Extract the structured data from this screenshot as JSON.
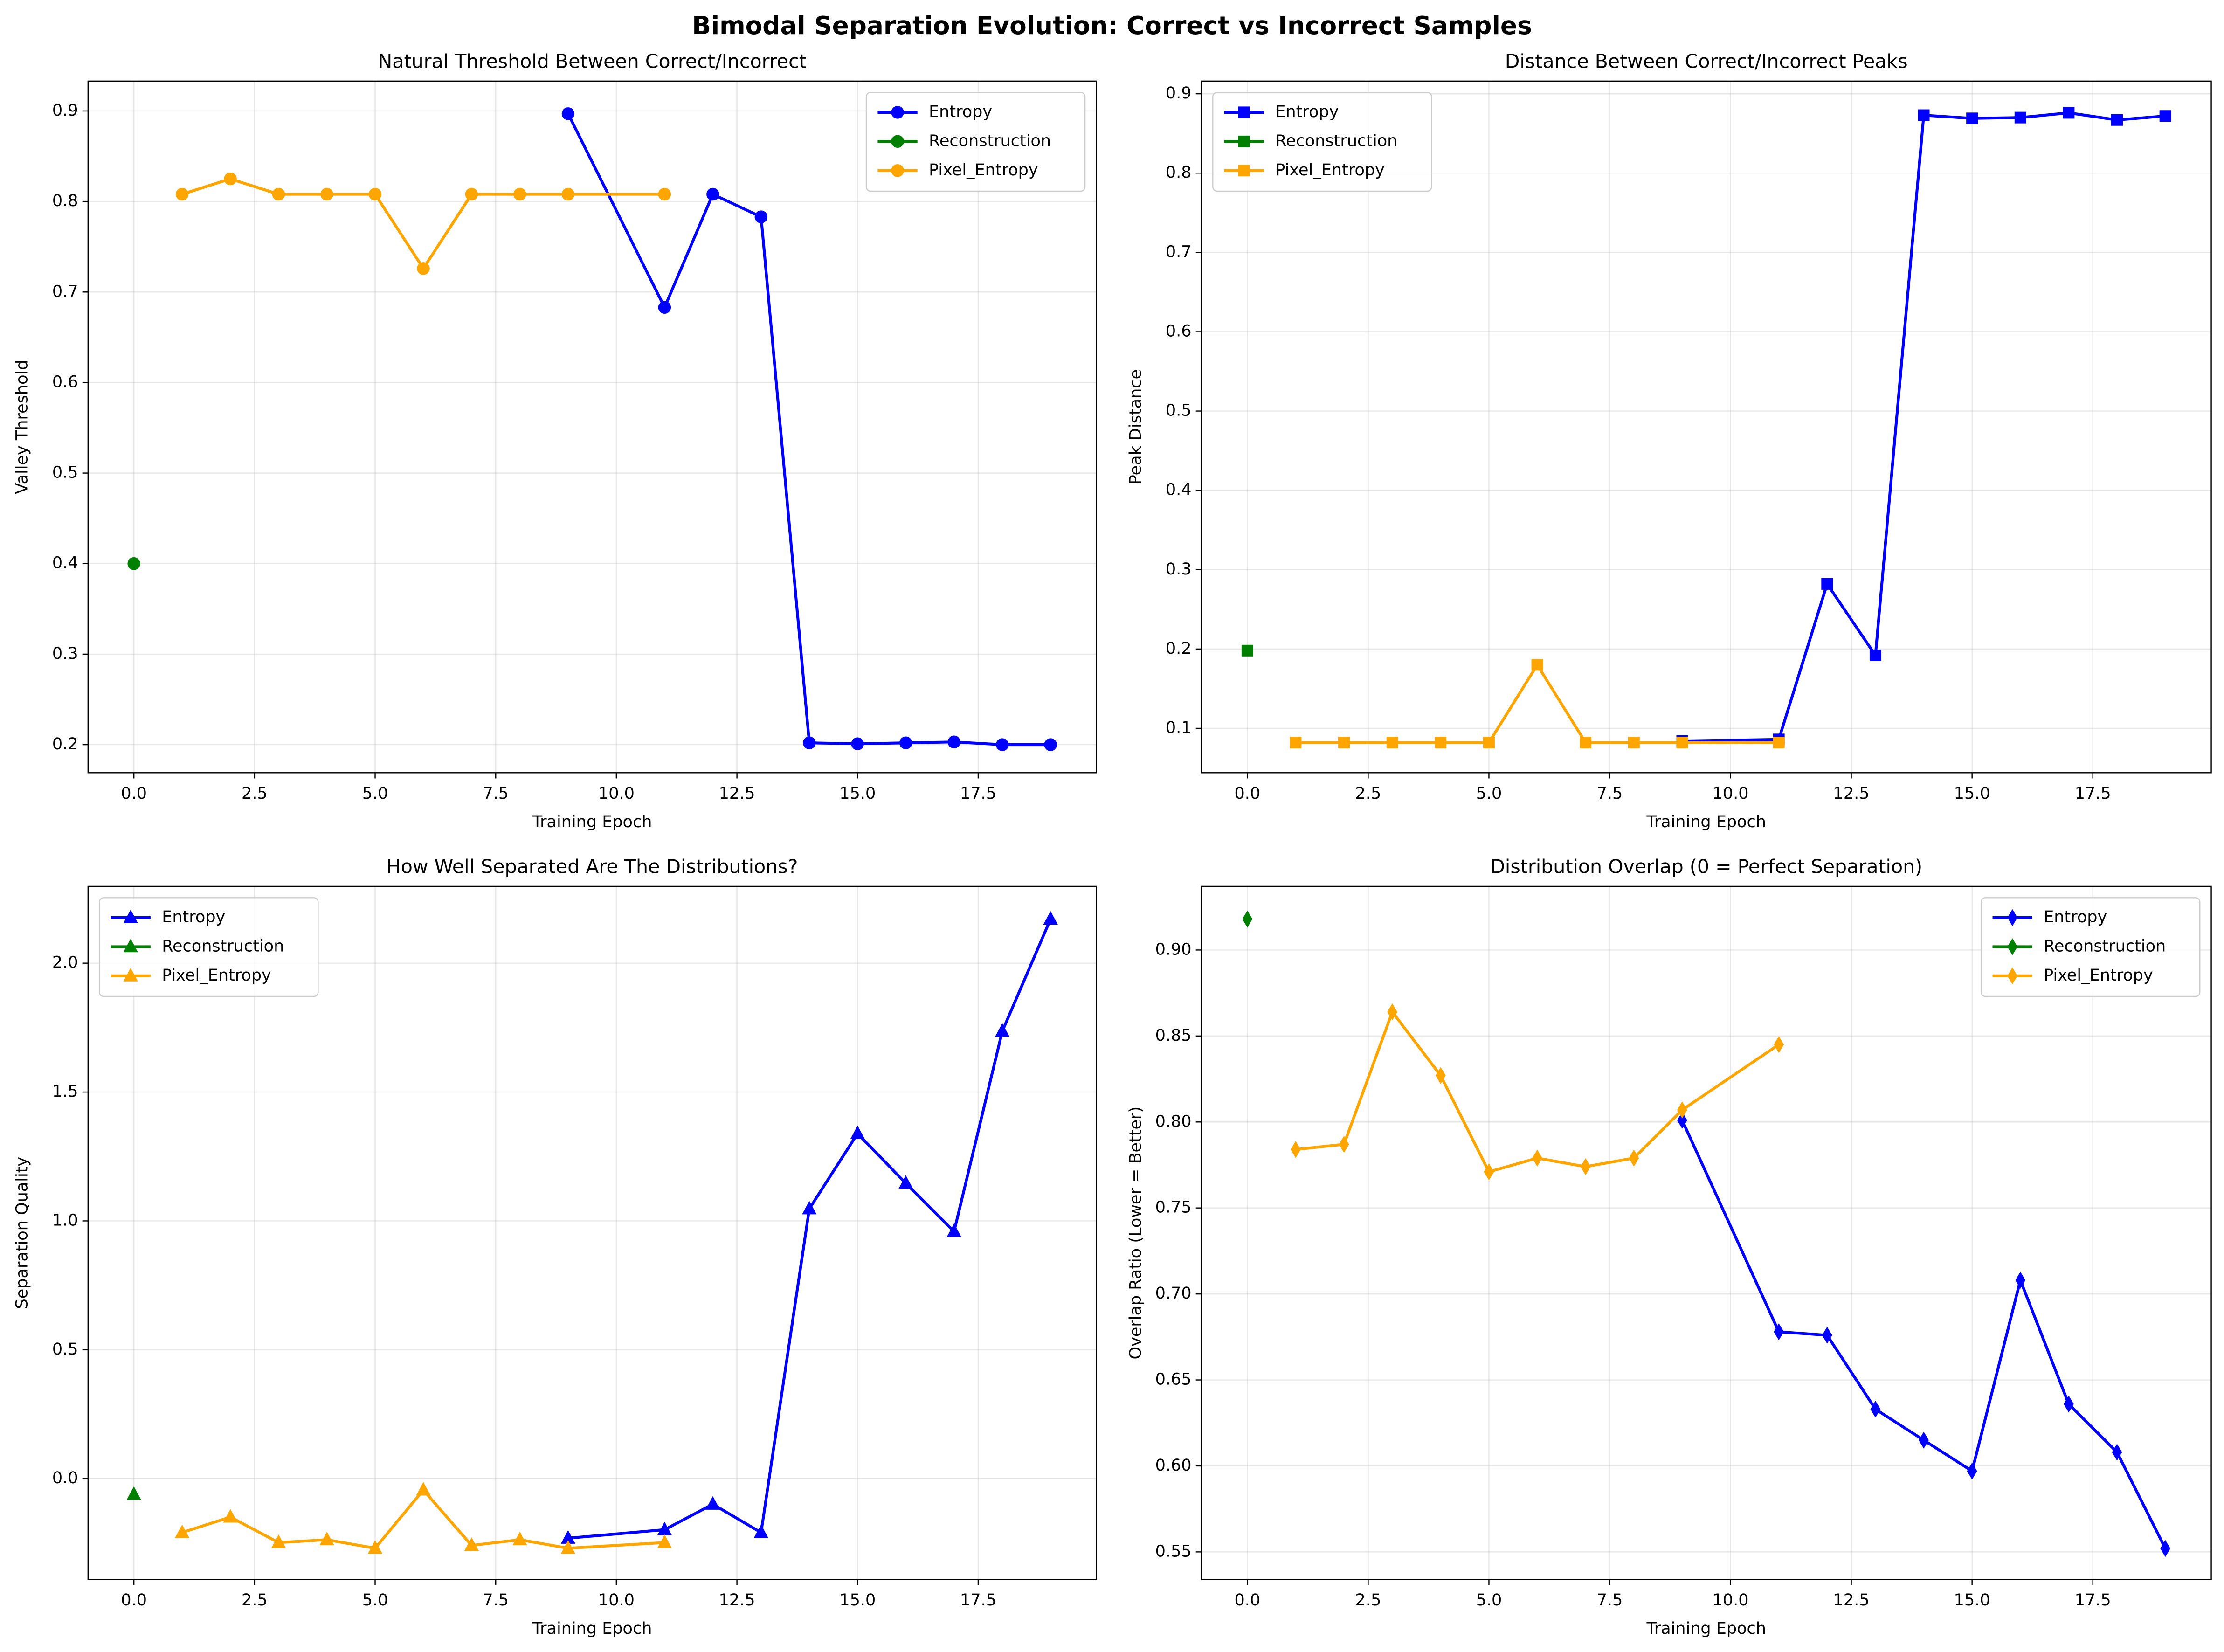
{
  "title": "Bimodal Separation Evolution: Correct vs Incorrect Samples",
  "chart_data": [
    {
      "type": "line",
      "title": "Natural Threshold Between Correct/Incorrect",
      "xlabel": "Training Epoch",
      "ylabel": "Valley Threshold",
      "marker": "circle",
      "grid": true,
      "legend": "upper right",
      "xlim": [
        -0.95,
        19.95
      ],
      "xticks": [
        {
          "value": 0,
          "label": "0.0"
        },
        2.5,
        {
          "value": 5,
          "label": "5.0"
        },
        7.5,
        {
          "value": 10,
          "label": "10.0"
        },
        12.5,
        {
          "value": 15,
          "label": "15.0"
        },
        17.5
      ],
      "ylim": [
        0.169,
        0.933
      ],
      "yticks": [
        0.2,
        0.3,
        0.4,
        0.5,
        0.6,
        0.7,
        0.8,
        0.9
      ],
      "series": [
        {
          "name": "Entropy",
          "color": "#0000ff",
          "x": [
            9,
            11,
            12,
            13,
            14,
            15,
            16,
            17,
            18,
            19
          ],
          "values": [
            0.897,
            0.683,
            0.808,
            0.783,
            0.202,
            0.201,
            0.202,
            0.203,
            0.2,
            0.2
          ]
        },
        {
          "name": "Reconstruction",
          "color": "#008000",
          "x": [
            0
          ],
          "values": [
            0.4
          ]
        },
        {
          "name": "Pixel_Entropy",
          "color": "#ffa500",
          "x": [
            1,
            2,
            3,
            4,
            5,
            6,
            7,
            8,
            9,
            11
          ],
          "values": [
            0.808,
            0.825,
            0.808,
            0.808,
            0.808,
            0.726,
            0.808,
            0.808,
            0.808,
            0.808
          ]
        }
      ]
    },
    {
      "type": "line",
      "title": "Distance Between Correct/Incorrect Peaks",
      "xlabel": "Training Epoch",
      "ylabel": "Peak Distance",
      "marker": "square",
      "grid": true,
      "legend": "upper left",
      "xlim": [
        -0.95,
        19.95
      ],
      "xticks": [
        {
          "value": 0,
          "label": "0.0"
        },
        2.5,
        {
          "value": 5,
          "label": "5.0"
        },
        7.5,
        {
          "value": 10,
          "label": "10.0"
        },
        12.5,
        {
          "value": 15,
          "label": "15.0"
        },
        17.5
      ],
      "ylim": [
        0.044,
        0.916
      ],
      "yticks": [
        0.1,
        0.2,
        0.3,
        0.4,
        0.5,
        0.6,
        0.7,
        0.8,
        0.9
      ],
      "series": [
        {
          "name": "Entropy",
          "color": "#0000ff",
          "x": [
            9,
            11,
            12,
            13,
            14,
            15,
            16,
            17,
            18,
            19
          ],
          "values": [
            0.084,
            0.086,
            0.282,
            0.192,
            0.873,
            0.869,
            0.87,
            0.876,
            0.867,
            0.872
          ]
        },
        {
          "name": "Reconstruction",
          "color": "#008000",
          "x": [
            0
          ],
          "values": [
            0.198
          ]
        },
        {
          "name": "Pixel_Entropy",
          "color": "#ffa500",
          "x": [
            1,
            2,
            3,
            4,
            5,
            6,
            7,
            8,
            9,
            11
          ],
          "values": [
            0.082,
            0.082,
            0.082,
            0.082,
            0.082,
            0.18,
            0.082,
            0.082,
            0.082,
            0.082
          ]
        }
      ]
    },
    {
      "type": "line",
      "title": "How Well Separated Are The Distributions?",
      "xlabel": "Training Epoch",
      "ylabel": "Separation Quality",
      "marker": "triangle",
      "grid": true,
      "legend": "upper left",
      "xlim": [
        -0.95,
        19.95
      ],
      "xticks": [
        {
          "value": 0,
          "label": "0.0"
        },
        2.5,
        {
          "value": 5,
          "label": "5.0"
        },
        7.5,
        {
          "value": 10,
          "label": "10.0"
        },
        12.5,
        {
          "value": 15,
          "label": "15.0"
        },
        17.5
      ],
      "ylim": [
        -0.391,
        2.298
      ],
      "yticks": [
        {
          "value": 0,
          "label": "0.0"
        },
        0.5,
        {
          "value": 1,
          "label": "1.0"
        },
        1.5,
        {
          "value": 2,
          "label": "2.0"
        }
      ],
      "series": [
        {
          "name": "Entropy",
          "color": "#0000ff",
          "x": [
            9,
            11,
            12,
            13,
            14,
            15,
            16,
            17,
            18,
            19
          ],
          "values": [
            -0.231,
            -0.198,
            -0.099,
            -0.209,
            1.047,
            1.339,
            1.146,
            0.959,
            1.736,
            2.171
          ]
        },
        {
          "name": "Reconstruction",
          "color": "#008000",
          "x": [
            0
          ],
          "values": [
            -0.061
          ]
        },
        {
          "name": "Pixel_Entropy",
          "color": "#ffa500",
          "x": [
            1,
            2,
            3,
            4,
            5,
            6,
            7,
            8,
            9,
            11
          ],
          "values": [
            -0.209,
            -0.149,
            -0.248,
            -0.237,
            -0.27,
            -0.044,
            -0.259,
            -0.237,
            -0.27,
            -0.248
          ]
        }
      ]
    },
    {
      "type": "line",
      "title": "Distribution Overlap (0 = Perfect Separation)",
      "xlabel": "Training Epoch",
      "ylabel": "Overlap Ratio (Lower = Better)",
      "marker": "diamond",
      "grid": true,
      "legend": "upper right",
      "xlim": [
        -0.95,
        19.95
      ],
      "xticks": [
        {
          "value": 0,
          "label": "0.0"
        },
        2.5,
        {
          "value": 5,
          "label": "5.0"
        },
        7.5,
        {
          "value": 10,
          "label": "10.0"
        },
        12.5,
        {
          "value": 15,
          "label": "15.0"
        },
        17.5
      ],
      "ylim": [
        0.534,
        0.937
      ],
      "yticks": [
        0.55,
        {
          "value": 0.6,
          "label": "0.60"
        },
        0.65,
        {
          "value": 0.7,
          "label": "0.70"
        },
        0.75,
        {
          "value": 0.8,
          "label": "0.80"
        },
        0.85,
        {
          "value": 0.9,
          "label": "0.90"
        }
      ],
      "series": [
        {
          "name": "Entropy",
          "color": "#0000ff",
          "x": [
            9,
            11,
            12,
            13,
            14,
            15,
            16,
            17,
            18,
            19
          ],
          "values": [
            0.801,
            0.678,
            0.676,
            0.633,
            0.615,
            0.597,
            0.708,
            0.636,
            0.608,
            0.552
          ]
        },
        {
          "name": "Reconstruction",
          "color": "#008000",
          "x": [
            0
          ],
          "values": [
            0.918
          ]
        },
        {
          "name": "Pixel_Entropy",
          "color": "#ffa500",
          "x": [
            1,
            2,
            3,
            4,
            5,
            6,
            7,
            8,
            9,
            11
          ],
          "values": [
            0.784,
            0.787,
            0.864,
            0.827,
            0.771,
            0.779,
            0.774,
            0.779,
            0.807,
            0.845
          ]
        }
      ]
    }
  ]
}
